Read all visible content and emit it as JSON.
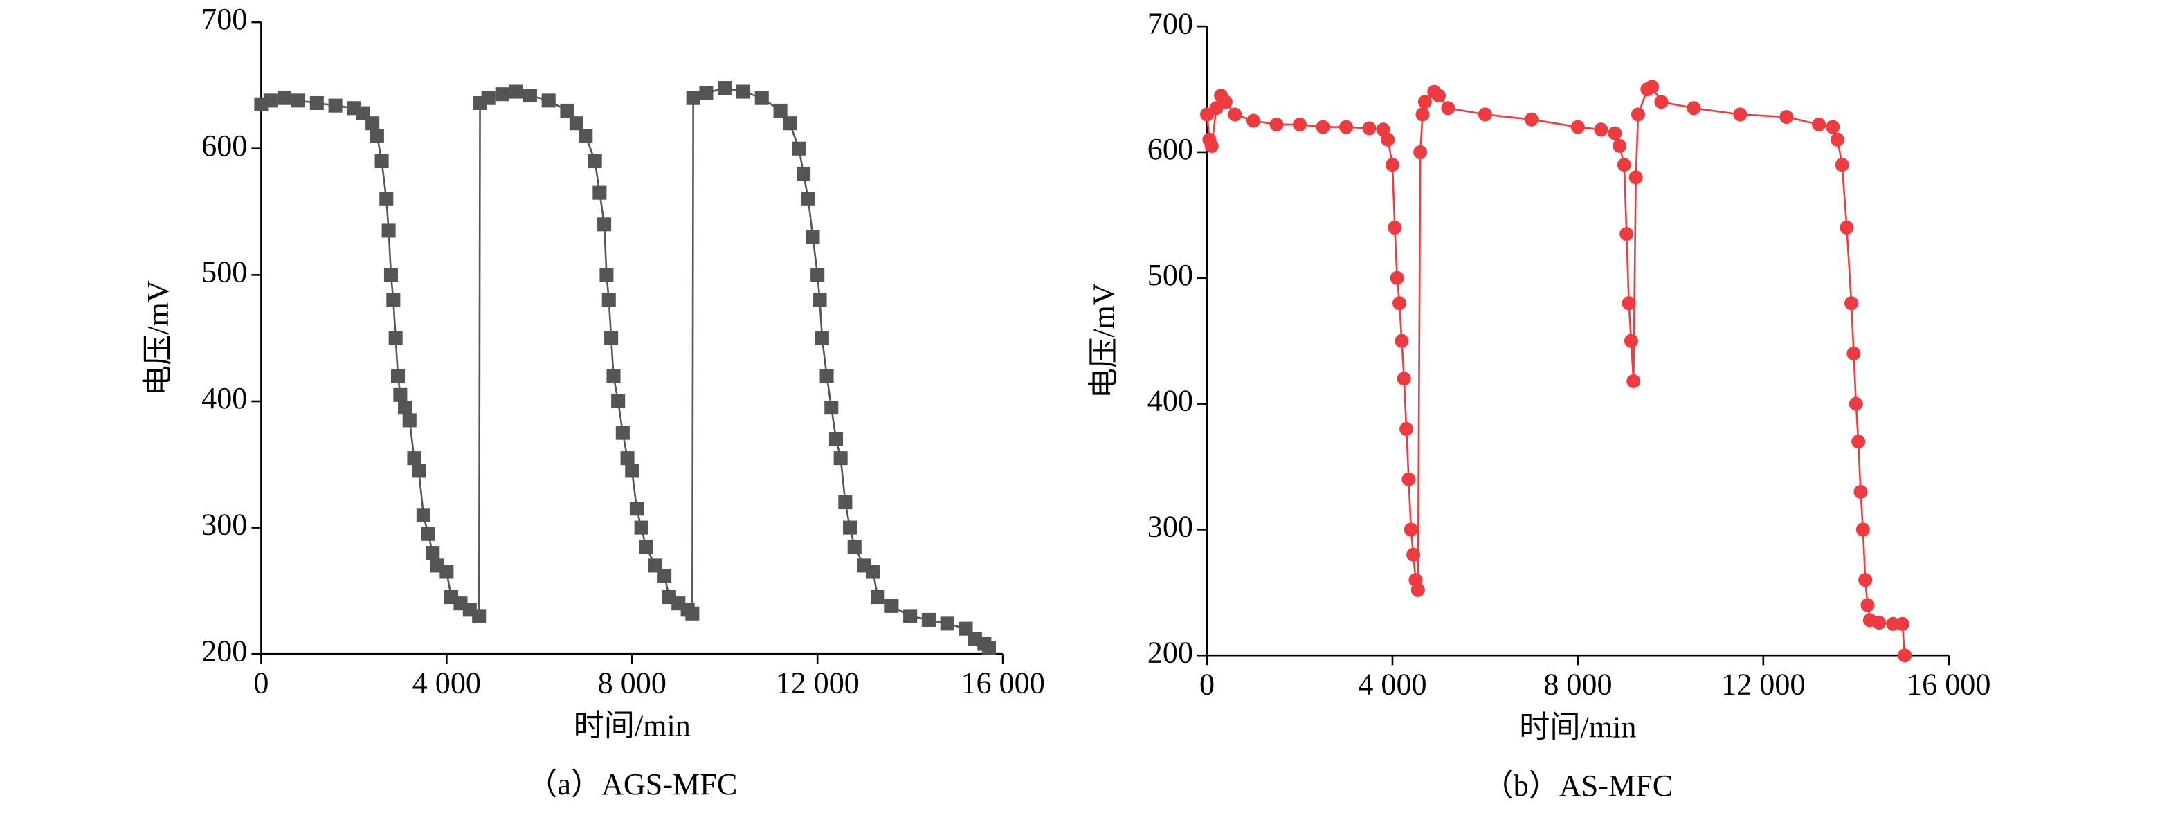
{
  "chart_data": [
    {
      "type": "line",
      "marker": "square",
      "caption": "（a）AGS-MFC",
      "xlabel": "时间/min",
      "ylabel": "电压/mV",
      "xlim": [
        0,
        16000
      ],
      "ylim": [
        200,
        700
      ],
      "xticks": [
        0,
        {
          "value": 4000,
          "label": "4 000"
        },
        {
          "value": 8000,
          "label": "8 000"
        },
        {
          "value": 12000,
          "label": "12 000"
        },
        {
          "value": 16000,
          "label": "16 000"
        }
      ],
      "yticks": [
        200,
        300,
        400,
        500,
        600,
        700
      ],
      "series": [
        {
          "color": "#555555",
          "x": [
            0,
            200,
            500,
            800,
            1200,
            1600,
            2000,
            2200,
            2400,
            2500,
            2600,
            2700,
            2750,
            2800,
            2850,
            2900,
            2950,
            3000,
            3100,
            3200,
            3300,
            3400,
            3500,
            3600,
            3700,
            3800,
            4000,
            4100,
            4300,
            4500,
            4700,
            4720,
            4900,
            5200,
            5500,
            5800,
            6200,
            6600,
            6800,
            7000,
            7200,
            7300,
            7400,
            7450,
            7500,
            7550,
            7600,
            7700,
            7800,
            7900,
            8000,
            8100,
            8200,
            8300,
            8500,
            8700,
            8800,
            9000,
            9200,
            9300,
            9320,
            9600,
            10000,
            10400,
            10800,
            11200,
            11400,
            11600,
            11700,
            11800,
            11900,
            12000,
            12050,
            12100,
            12200,
            12300,
            12400,
            12500,
            12600,
            12700,
            12800,
            13000,
            13200,
            13300,
            13600,
            14000,
            14400,
            14800,
            15200,
            15400,
            15600,
            15700
          ],
          "values": [
            635,
            638,
            640,
            638,
            636,
            634,
            632,
            628,
            620,
            610,
            590,
            560,
            535,
            500,
            480,
            450,
            420,
            405,
            395,
            385,
            355,
            345,
            310,
            295,
            280,
            270,
            265,
            245,
            240,
            235,
            230,
            636,
            640,
            643,
            645,
            642,
            638,
            630,
            620,
            610,
            590,
            565,
            540,
            500,
            480,
            450,
            420,
            400,
            375,
            355,
            345,
            315,
            300,
            285,
            270,
            262,
            245,
            240,
            235,
            232,
            640,
            644,
            648,
            645,
            640,
            630,
            620,
            600,
            580,
            560,
            530,
            500,
            480,
            450,
            420,
            395,
            370,
            355,
            320,
            300,
            285,
            270,
            265,
            245,
            238,
            230,
            227,
            224,
            220,
            212,
            208,
            205
          ]
        }
      ]
    },
    {
      "type": "line",
      "marker": "circle",
      "caption": "（b）AS-MFC",
      "xlabel": "时间/min",
      "ylabel": "电压/mV",
      "xlim": [
        0,
        16000
      ],
      "ylim": [
        200,
        700
      ],
      "xticks": [
        0,
        {
          "value": 4000,
          "label": "4 000"
        },
        {
          "value": 8000,
          "label": "8 000"
        },
        {
          "value": 12000,
          "label": "12 000"
        },
        {
          "value": 16000,
          "label": "16 000"
        }
      ],
      "yticks": [
        200,
        300,
        400,
        500,
        600,
        700
      ],
      "series": [
        {
          "color": "#ee3b40",
          "x": [
            0,
            50,
            100,
            200,
            300,
            400,
            600,
            1000,
            1500,
            2000,
            2500,
            3000,
            3500,
            3800,
            3900,
            4000,
            4050,
            4100,
            4150,
            4200,
            4250,
            4300,
            4350,
            4400,
            4450,
            4500,
            4550,
            4600,
            4650,
            4700,
            4900,
            5000,
            5200,
            6000,
            7000,
            8000,
            8500,
            8800,
            8900,
            9000,
            9050,
            9100,
            9150,
            9200,
            9250,
            9300,
            9500,
            9600,
            9800,
            10500,
            11500,
            12500,
            13200,
            13500,
            13600,
            13700,
            13800,
            13900,
            13950,
            14000,
            14050,
            14100,
            14150,
            14200,
            14250,
            14300,
            14500,
            14800,
            15000,
            15050
          ],
          "values": [
            630,
            610,
            605,
            635,
            645,
            640,
            630,
            625,
            622,
            622,
            620,
            620,
            619,
            618,
            610,
            590,
            540,
            500,
            480,
            450,
            420,
            380,
            340,
            300,
            280,
            260,
            252,
            600,
            630,
            640,
            648,
            645,
            635,
            630,
            626,
            620,
            618,
            615,
            605,
            590,
            535,
            480,
            450,
            418,
            580,
            630,
            650,
            652,
            640,
            635,
            630,
            628,
            622,
            620,
            610,
            590,
            540,
            480,
            440,
            400,
            370,
            330,
            300,
            260,
            240,
            228,
            226,
            225,
            225,
            200
          ]
        }
      ]
    }
  ]
}
